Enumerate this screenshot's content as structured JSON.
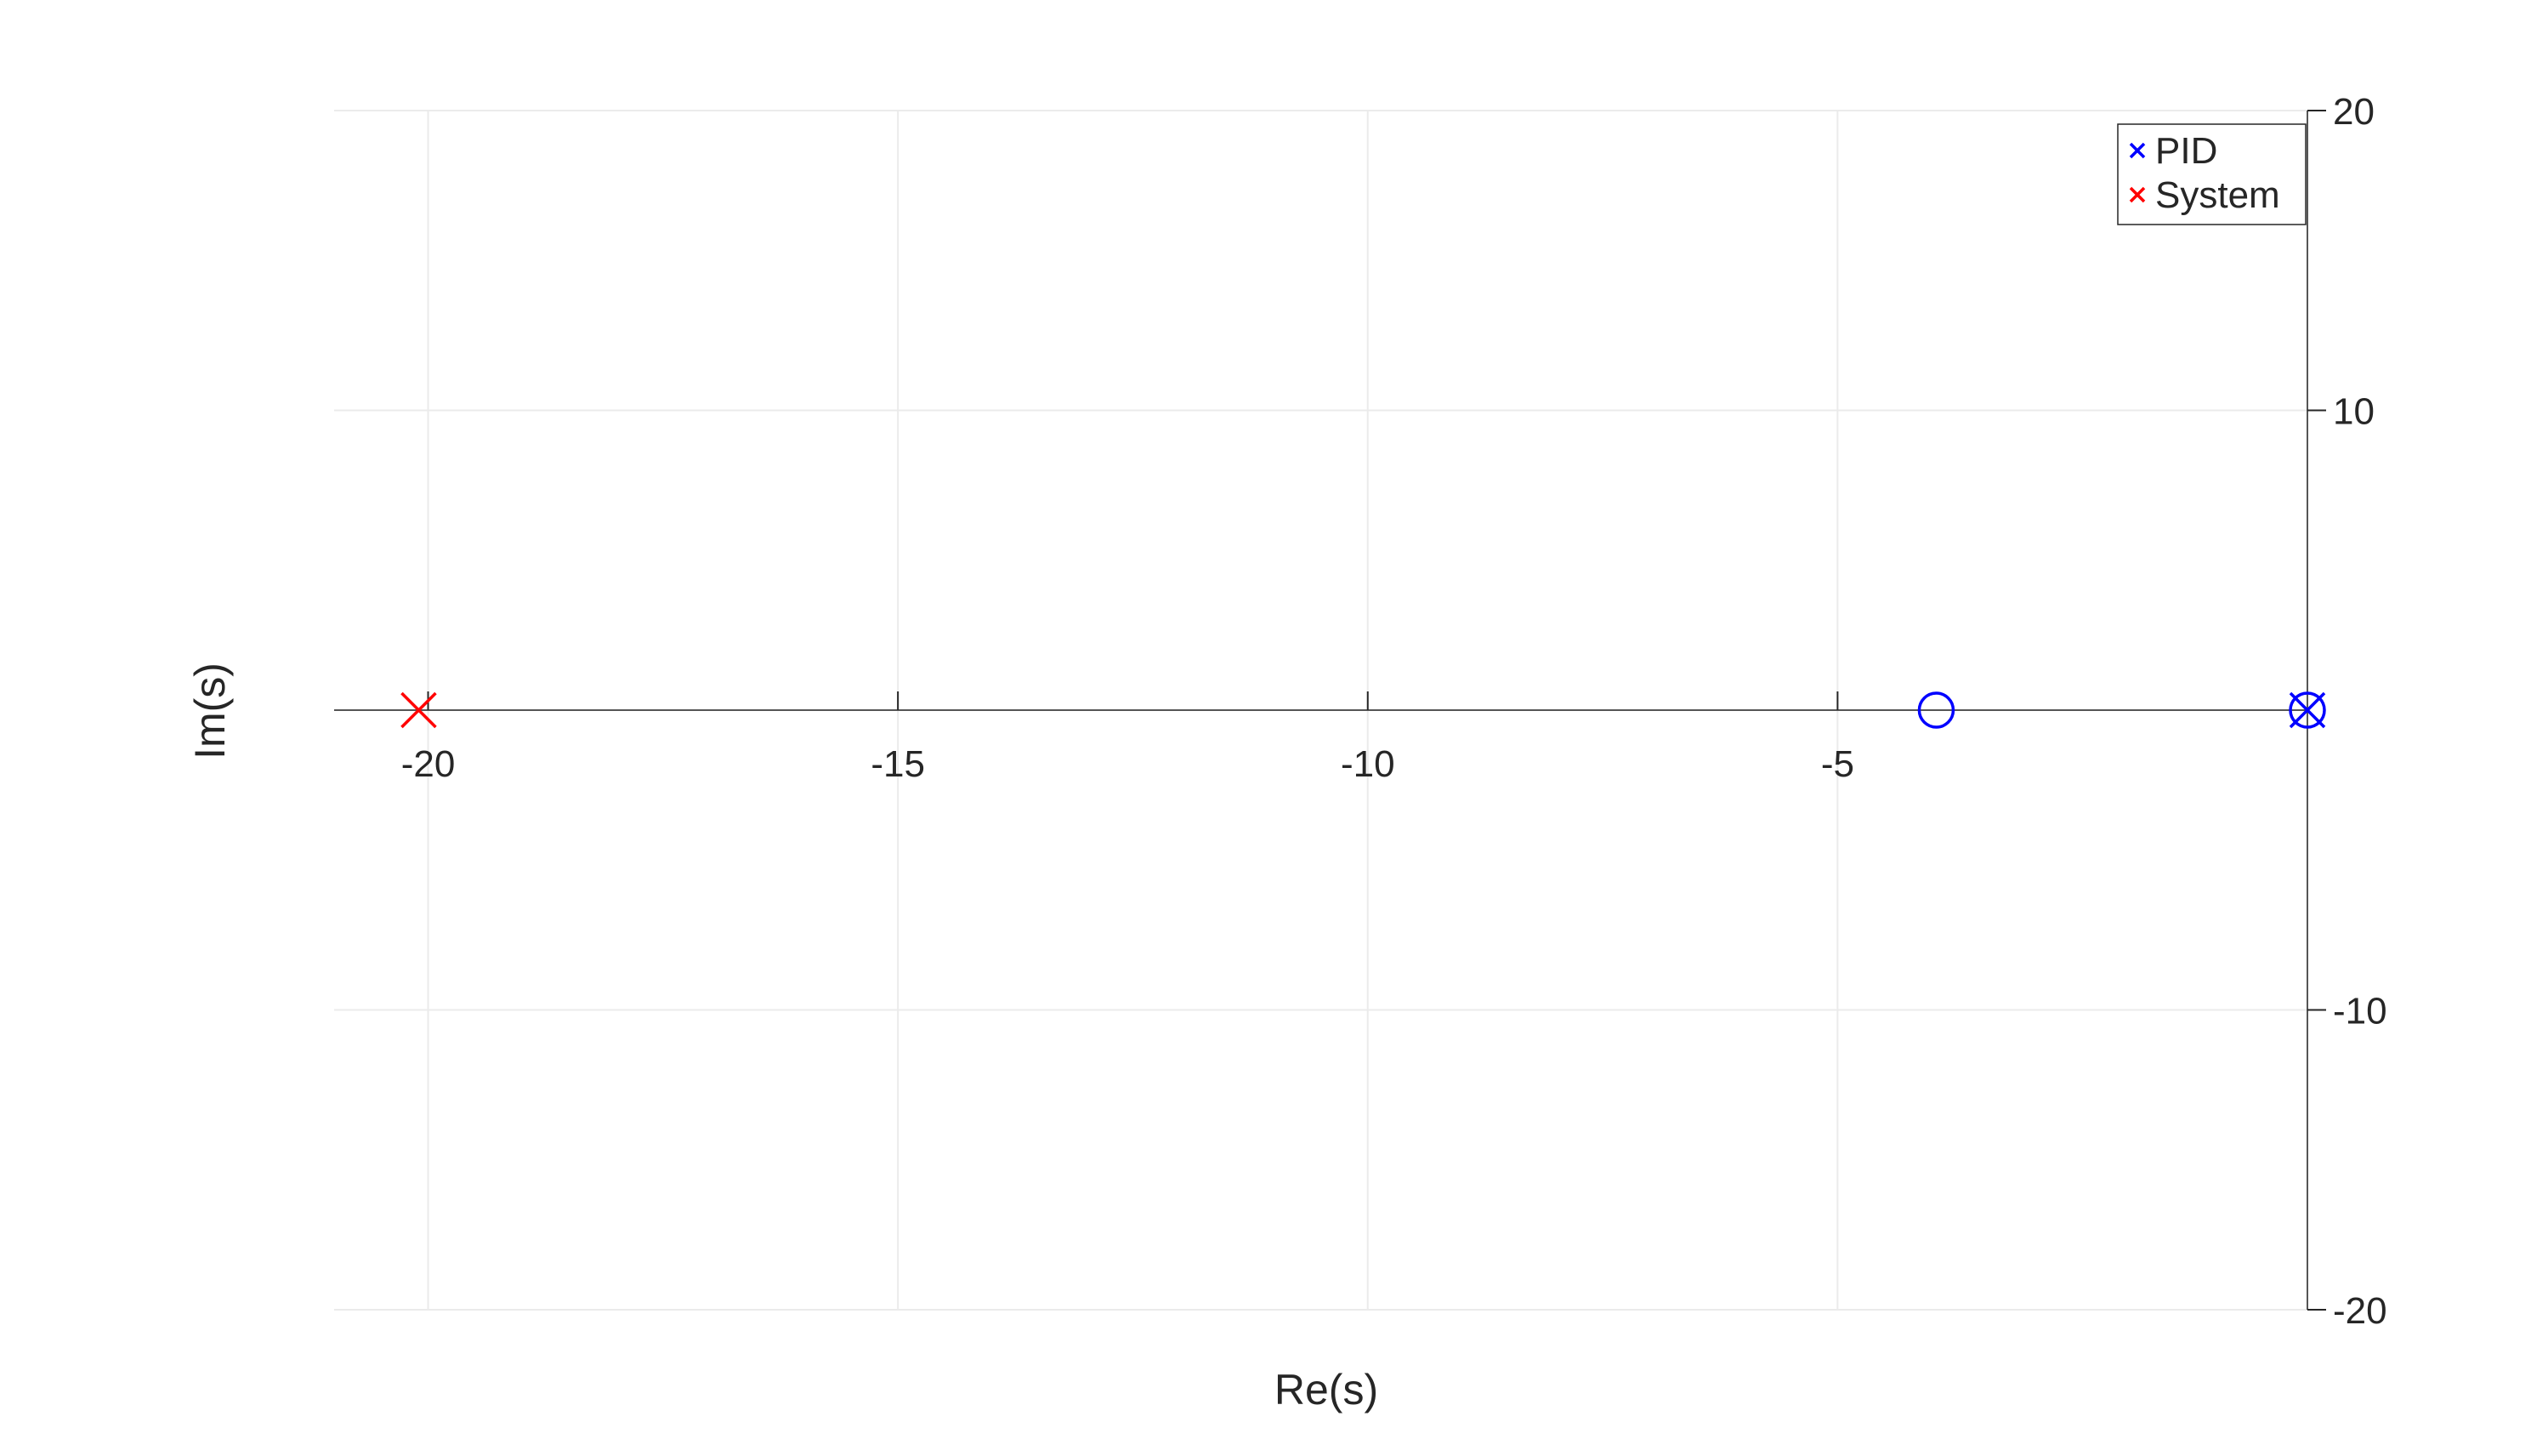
{
  "chart_data": {
    "type": "scatter",
    "title": "",
    "xlabel": "Re(s)",
    "ylabel": "Im(s)",
    "xlim": [
      -21,
      0
    ],
    "ylim": [
      -20,
      20
    ],
    "x_ticks": [
      -20,
      -15,
      -10,
      -5
    ],
    "x_tick_labels": [
      "-20",
      "-15",
      "-10",
      "-5"
    ],
    "y_ticks": [
      -20,
      -10,
      10,
      20
    ],
    "y_tick_labels": [
      "-20",
      "-10",
      "10",
      "20"
    ],
    "grid": true,
    "x_axis_location": "origin",
    "y_axis_location": "right",
    "legend": {
      "location": "top-right",
      "entries": [
        "PID",
        "System"
      ]
    },
    "series": [
      {
        "name": "PID",
        "color": "#0000ff",
        "poles": [
          {
            "re": 0,
            "im": 0
          }
        ],
        "zeros": [
          {
            "re": -3.95,
            "im": 0
          },
          {
            "re": 0,
            "im": 0
          }
        ]
      },
      {
        "name": "System",
        "color": "#ff0000",
        "poles": [
          {
            "re": -20.1,
            "im": 0
          }
        ],
        "zeros": []
      }
    ]
  }
}
